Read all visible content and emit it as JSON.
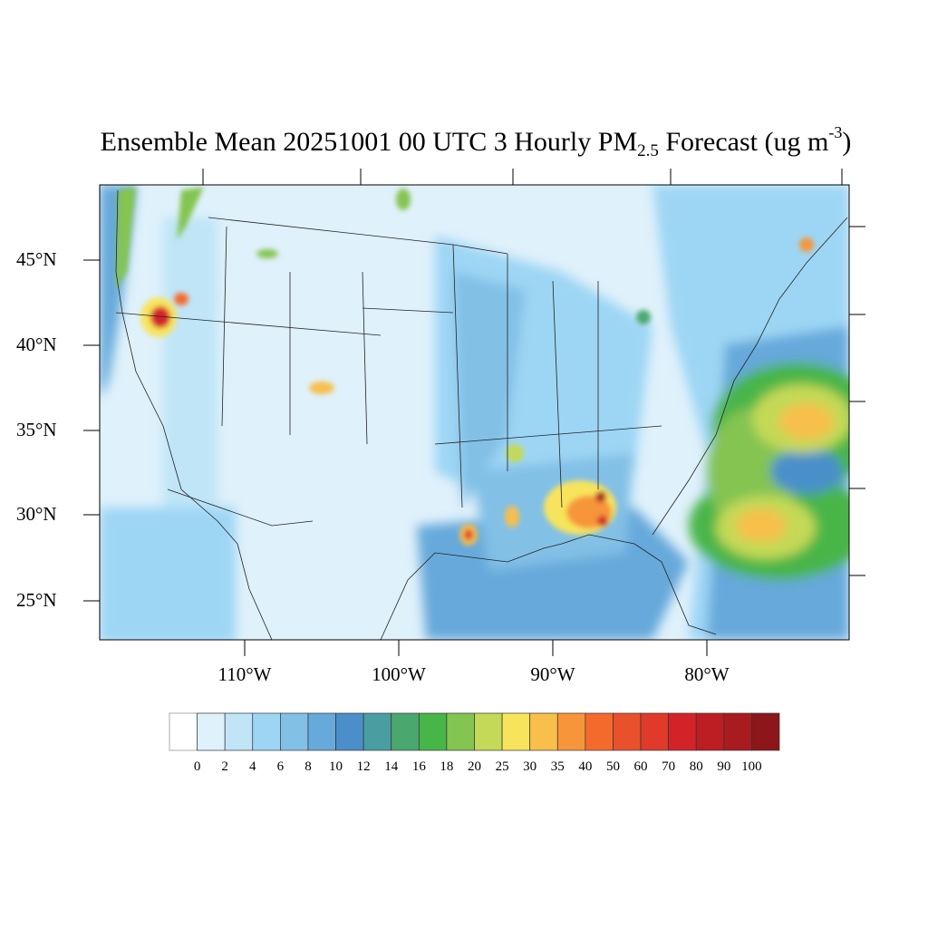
{
  "title": {
    "prefix": "Ensemble Mean 20251001 00 UTC 3 Hourly PM",
    "subscript": "2.5",
    "middle": " Forecast (ug m",
    "superscript": "-3",
    "suffix": ")"
  },
  "map": {
    "projection": "Lambert conformal, CONUS",
    "background_color": "#dff1fb",
    "lat_labels": [
      "45°N",
      "40°N",
      "35°N",
      "30°N",
      "25°N"
    ],
    "lon_labels": [
      "110°W",
      "100°W",
      "90°W",
      "80°W"
    ]
  },
  "colorbar": {
    "labels": [
      "0",
      "2",
      "4",
      "6",
      "8",
      "10",
      "12",
      "14",
      "16",
      "18",
      "20",
      "25",
      "30",
      "35",
      "40",
      "50",
      "60",
      "70",
      "80",
      "90",
      "100"
    ],
    "colors": [
      "#ffffff",
      "#dff1fb",
      "#bfe5f7",
      "#9dd6f4",
      "#82c0e6",
      "#66a9da",
      "#4a8fca",
      "#4a9ea2",
      "#4aa76e",
      "#48b548",
      "#84c451",
      "#c4d957",
      "#f8e45c",
      "#f8bf4b",
      "#f7953b",
      "#f46a2c",
      "#e8512b",
      "#df3a2a",
      "#d42229",
      "#bd1e24",
      "#a81c20",
      "#8c161a"
    ]
  }
}
